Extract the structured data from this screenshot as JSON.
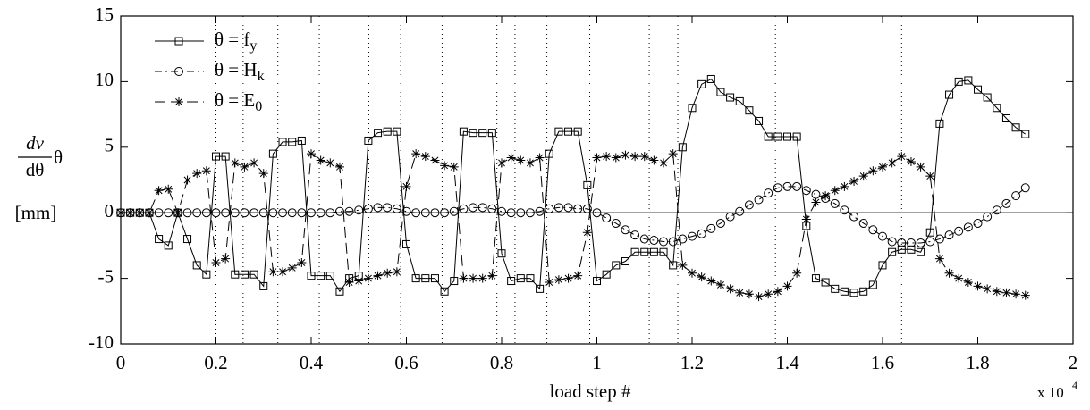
{
  "chart_data": {
    "type": "line",
    "ylabel_numerator": "dv",
    "ylabel_denominator": "dθ",
    "ylabel_suffix": "θ",
    "ylabel_unit": "[mm]",
    "xlabel": "load step #",
    "x_multiplier": "x 10",
    "x_multiplier_exp": "4",
    "xlim": [
      0,
      2
    ],
    "xticks": [
      0,
      0.2,
      0.4,
      0.6,
      0.8,
      1,
      1.2,
      1.4,
      1.6,
      1.8,
      2
    ],
    "ylim": [
      -10,
      15
    ],
    "yticks": [
      -10,
      -5,
      0,
      5,
      10,
      15
    ],
    "vlines": [
      0.2,
      0.257,
      0.33,
      0.417,
      0.521,
      0.588,
      0.675,
      0.79,
      0.828,
      0.895,
      0.985,
      1.11,
      1.17,
      1.375,
      1.64
    ],
    "legend": "top-left",
    "x": [
      0,
      0.02,
      0.04,
      0.06,
      0.08,
      0.1,
      0.12,
      0.14,
      0.16,
      0.18,
      0.2,
      0.22,
      0.24,
      0.26,
      0.28,
      0.3,
      0.32,
      0.34,
      0.36,
      0.38,
      0.4,
      0.42,
      0.44,
      0.46,
      0.48,
      0.5,
      0.52,
      0.54,
      0.56,
      0.58,
      0.6,
      0.62,
      0.64,
      0.66,
      0.68,
      0.7,
      0.72,
      0.74,
      0.76,
      0.78,
      0.8,
      0.82,
      0.84,
      0.86,
      0.88,
      0.9,
      0.92,
      0.94,
      0.96,
      0.98,
      1,
      1.02,
      1.04,
      1.06,
      1.08,
      1.1,
      1.12,
      1.14,
      1.16,
      1.18,
      1.2,
      1.22,
      1.24,
      1.26,
      1.28,
      1.3,
      1.32,
      1.34,
      1.36,
      1.38,
      1.4,
      1.42,
      1.44,
      1.46,
      1.48,
      1.5,
      1.52,
      1.54,
      1.56,
      1.58,
      1.6,
      1.62,
      1.64,
      1.66,
      1.68,
      1.7,
      1.72,
      1.74,
      1.76,
      1.78,
      1.8,
      1.82,
      1.84,
      1.86,
      1.88,
      1.9
    ],
    "series": [
      {
        "name": "θ = f",
        "name_sub": "y",
        "color": "#000000",
        "marker": "square",
        "dash": "none",
        "values": [
          0,
          0,
          0,
          0,
          -2,
          -2.5,
          0,
          -2,
          -4,
          -4.7,
          4.3,
          4.3,
          -4.7,
          -4.7,
          -4.7,
          -5.6,
          4.5,
          5.4,
          5.4,
          5.5,
          -4.8,
          -4.8,
          -4.8,
          -6,
          -5,
          -4.8,
          5.5,
          6.1,
          6.2,
          6.2,
          -2.4,
          -5,
          -5,
          -5,
          -6,
          -5.2,
          6.2,
          6.1,
          6.1,
          6.1,
          -3.1,
          -5.2,
          -5,
          -5,
          -5.8,
          4.5,
          6.2,
          6.2,
          6.2,
          2.1,
          -5.2,
          -4.7,
          -4,
          -3.7,
          -3,
          -3,
          -3,
          -3,
          -4,
          5,
          8,
          9.8,
          10.2,
          9.2,
          8.8,
          8.5,
          7.8,
          7,
          5.8,
          5.8,
          5.8,
          5.8,
          -1,
          -5,
          -5.3,
          -5.8,
          -6,
          -6.1,
          -6,
          -5.5,
          -4,
          -3,
          -2.8,
          -2.8,
          -3,
          -1.5,
          6.8,
          9,
          10,
          10.1,
          9.4,
          8.8,
          8,
          7.2,
          6.5,
          6
        ]
      },
      {
        "name": "θ = H",
        "name_sub": "k",
        "color": "#000000",
        "marker": "circle",
        "dash": "8 4 2 4",
        "values": [
          0,
          0,
          0,
          0,
          0,
          0,
          0,
          0,
          0,
          0,
          0,
          0,
          0,
          0,
          0,
          0,
          0,
          0,
          0,
          0,
          0,
          0,
          0,
          0.1,
          0.1,
          0.2,
          0.3,
          0.4,
          0.4,
          0.3,
          0.1,
          0,
          0,
          0,
          0,
          0.1,
          0.3,
          0.4,
          0.4,
          0.3,
          0.1,
          0,
          0,
          0,
          0.1,
          0.3,
          0.4,
          0.4,
          0.3,
          0.3,
          0,
          -0.4,
          -0.8,
          -1.3,
          -1.7,
          -2,
          -2.1,
          -2.2,
          -2.2,
          -2,
          -1.8,
          -1.6,
          -1.2,
          -0.8,
          -0.3,
          0.1,
          0.6,
          1,
          1.5,
          1.9,
          2,
          2,
          1.7,
          1.4,
          1.1,
          0.7,
          0.2,
          -0.3,
          -0.8,
          -1.3,
          -1.8,
          -2.2,
          -2.3,
          -2.3,
          -2.3,
          -2.2,
          -2,
          -1.7,
          -1.4,
          -1.1,
          -0.8,
          -0.3,
          0.2,
          0.7,
          1.3,
          1.9
        ]
      },
      {
        "name": "θ = E",
        "name_sub": "0",
        "color": "#000000",
        "marker": "star",
        "dash": "12 6",
        "values": [
          0,
          0,
          0,
          0,
          1.7,
          1.8,
          0,
          2.5,
          3,
          3.2,
          -3.8,
          -3.5,
          3.8,
          3.5,
          3.8,
          3,
          -4.5,
          -4.5,
          -4.2,
          -3.8,
          4.5,
          4,
          3.8,
          3.5,
          -5.3,
          -5.2,
          -5,
          -4.8,
          -4.6,
          -4.5,
          2,
          4.5,
          4.3,
          4,
          3.6,
          3.5,
          -5,
          -5,
          -5,
          -4.8,
          3.8,
          4.2,
          4,
          3.8,
          4.2,
          -5.3,
          -5.1,
          -5,
          -4.8,
          -1.5,
          4.2,
          4.3,
          4.2,
          4.4,
          4.3,
          4.3,
          4,
          3.8,
          4.5,
          -4,
          -4.6,
          -4.9,
          -5.2,
          -5.5,
          -5.8,
          -6.1,
          -6.2,
          -6.4,
          -6.2,
          -6,
          -5.6,
          -4.6,
          -0.5,
          0.8,
          1.3,
          1.7,
          2,
          2.4,
          2.8,
          3.2,
          3.5,
          3.8,
          4.3,
          3.9,
          3.5,
          2.8,
          -3.5,
          -4.6,
          -5,
          -5.3,
          -5.6,
          -5.8,
          -6,
          -6.1,
          -6.2,
          -6.3
        ]
      }
    ]
  }
}
